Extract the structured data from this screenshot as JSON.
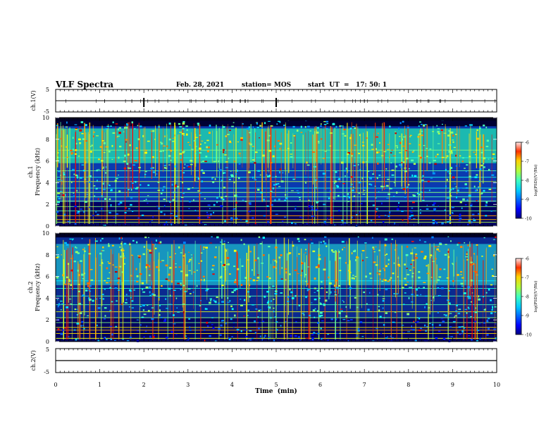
{
  "header": {
    "title": "VLF Spectra",
    "date": "Feb. 28, 2021",
    "station": "station= MOS",
    "start": "start  UT  =   17: 50: 1"
  },
  "chart_data": [
    {
      "type": "line",
      "panel": "ch1-waveform",
      "ylabel": "ch.1(V)",
      "ylim": [
        -5,
        5
      ],
      "yticks": [
        "5",
        "-5"
      ],
      "x": [
        0,
        10
      ],
      "values": [
        0,
        0
      ]
    },
    {
      "type": "heatmap",
      "panel": "ch1-spectrogram",
      "ylabel_line1": "ch.1",
      "ylabel_line2": "Frequency (kHz)",
      "ylim": [
        0,
        10
      ],
      "yticks": [
        "0",
        "2",
        "4",
        "6",
        "8",
        "10"
      ],
      "colorbar": {
        "label": "log(PSD)(V²/Hz)",
        "range": [
          -10,
          -6
        ],
        "ticks": [
          "-6",
          "-7",
          "-8",
          "-9",
          "-10"
        ]
      }
    },
    {
      "type": "heatmap",
      "panel": "ch2-spectrogram",
      "ylabel_line1": "ch.2",
      "ylabel_line2": "Frequency (kHz)",
      "ylim": [
        0,
        10
      ],
      "yticks": [
        "0",
        "2",
        "4",
        "6",
        "8",
        "10"
      ],
      "colorbar": {
        "label": "log(PSD)(V²/Hz)",
        "range": [
          -10,
          -6
        ],
        "ticks": [
          "-6",
          "-7",
          "-8",
          "-9",
          "-10"
        ]
      }
    },
    {
      "type": "line",
      "panel": "ch2-waveform",
      "ylabel": "ch.2(V)",
      "ylim": [
        -5,
        5
      ],
      "yticks": [
        "5",
        "-5"
      ],
      "x": [
        0,
        10
      ],
      "values": [
        0,
        0
      ]
    }
  ],
  "xaxis": {
    "label": "Time  (min)",
    "xlim": [
      0,
      10
    ],
    "ticks": [
      "0",
      "1",
      "2",
      "3",
      "4",
      "5",
      "6",
      "7",
      "8",
      "9",
      "10"
    ]
  },
  "colors": {
    "background": "#000033",
    "jet_low": "#00007f",
    "jet_mid": "#00ff80",
    "jet_high": "#ff2000"
  }
}
